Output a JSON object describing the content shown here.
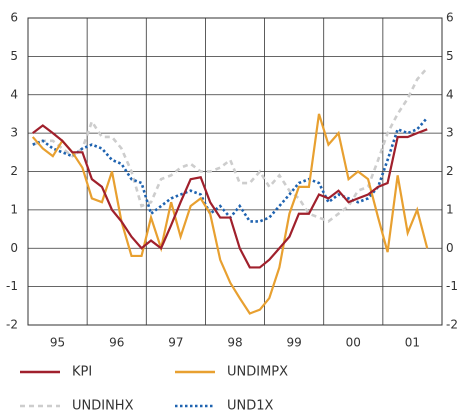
{
  "chart_data": {
    "type": "line",
    "x": [
      1995.08,
      1995.25,
      1995.42,
      1995.58,
      1995.75,
      1995.92,
      1996.08,
      1996.25,
      1996.42,
      1996.58,
      1996.75,
      1996.92,
      1997.08,
      1997.25,
      1997.42,
      1997.58,
      1997.75,
      1997.92,
      1998.08,
      1998.25,
      1998.42,
      1998.58,
      1998.75,
      1998.92,
      1999.08,
      1999.25,
      1999.42,
      1999.58,
      1999.75,
      1999.92,
      2000.08,
      2000.25,
      2000.42,
      2000.58,
      2000.75,
      2000.92,
      2001.08,
      2001.25,
      2001.42,
      2001.58,
      2001.75
    ],
    "series": [
      {
        "name": "KPI",
        "color": "#a0202c",
        "dash": "solid",
        "values": [
          3.0,
          3.2,
          3.0,
          2.8,
          2.5,
          2.5,
          1.8,
          1.6,
          1.0,
          0.7,
          0.3,
          0.0,
          0.2,
          0.0,
          0.6,
          1.2,
          1.8,
          1.85,
          1.2,
          0.8,
          0.8,
          0.0,
          -0.5,
          -0.5,
          -0.3,
          0.0,
          0.3,
          0.9,
          0.9,
          1.4,
          1.3,
          1.5,
          1.2,
          1.3,
          1.4,
          1.6,
          1.7,
          2.9,
          2.9,
          3.0,
          3.1
        ]
      },
      {
        "name": "UNDIMPX",
        "color": "#e8a030",
        "dash": "solid",
        "values": [
          2.9,
          2.6,
          2.4,
          2.8,
          2.5,
          2.1,
          1.3,
          1.2,
          2.0,
          0.7,
          -0.2,
          -0.2,
          0.8,
          0.0,
          1.2,
          0.3,
          1.1,
          1.3,
          0.9,
          -0.3,
          -0.9,
          -1.3,
          -1.7,
          -1.6,
          -1.3,
          -0.5,
          0.9,
          1.6,
          1.6,
          3.5,
          2.7,
          3.0,
          1.8,
          2.0,
          1.8,
          0.8,
          -0.1,
          1.9,
          0.4,
          1.0,
          0.0
        ]
      },
      {
        "name": "UNDINHX",
        "color": "#cdcdcd",
        "dash": "dashed",
        "values": [
          2.7,
          2.8,
          2.8,
          2.6,
          2.4,
          2.6,
          3.3,
          2.9,
          2.9,
          2.6,
          2.0,
          1.1,
          1.2,
          1.8,
          1.9,
          2.1,
          2.2,
          2.0,
          2.0,
          2.1,
          2.3,
          1.7,
          1.7,
          2.0,
          1.6,
          1.9,
          1.5,
          1.3,
          0.9,
          0.8,
          0.7,
          0.9,
          1.1,
          1.5,
          1.6,
          2.3,
          3.0,
          3.5,
          3.9,
          4.4,
          4.7
        ]
      },
      {
        "name": "UND1X",
        "color": "#1f63b0",
        "dash": "dotted",
        "values": [
          2.7,
          2.8,
          2.6,
          2.5,
          2.4,
          2.6,
          2.7,
          2.6,
          2.3,
          2.2,
          1.8,
          1.7,
          0.9,
          1.1,
          1.3,
          1.4,
          1.5,
          1.4,
          0.9,
          1.1,
          0.8,
          1.1,
          0.7,
          0.7,
          0.8,
          1.1,
          1.4,
          1.7,
          1.8,
          1.7,
          1.2,
          1.4,
          1.3,
          1.2,
          1.3,
          1.6,
          2.3,
          3.1,
          3.0,
          3.1,
          3.4
        ]
      }
    ],
    "xlim": [
      1995,
      2002
    ],
    "xticks": [
      {
        "value": 1995.5,
        "label": "95"
      },
      {
        "value": 1996.5,
        "label": "96"
      },
      {
        "value": 1997.5,
        "label": "97"
      },
      {
        "value": 1998.5,
        "label": "98"
      },
      {
        "value": 1999.5,
        "label": "99"
      },
      {
        "value": 2000.5,
        "label": "00"
      },
      {
        "value": 2001.5,
        "label": "01"
      }
    ],
    "xgrid": [
      1996,
      1997,
      1998,
      1999,
      2000,
      2001
    ],
    "ylim": [
      -2,
      6
    ],
    "yticks": [
      -2,
      -1,
      0,
      1,
      2,
      3,
      4,
      5,
      6
    ],
    "grid": true
  }
}
